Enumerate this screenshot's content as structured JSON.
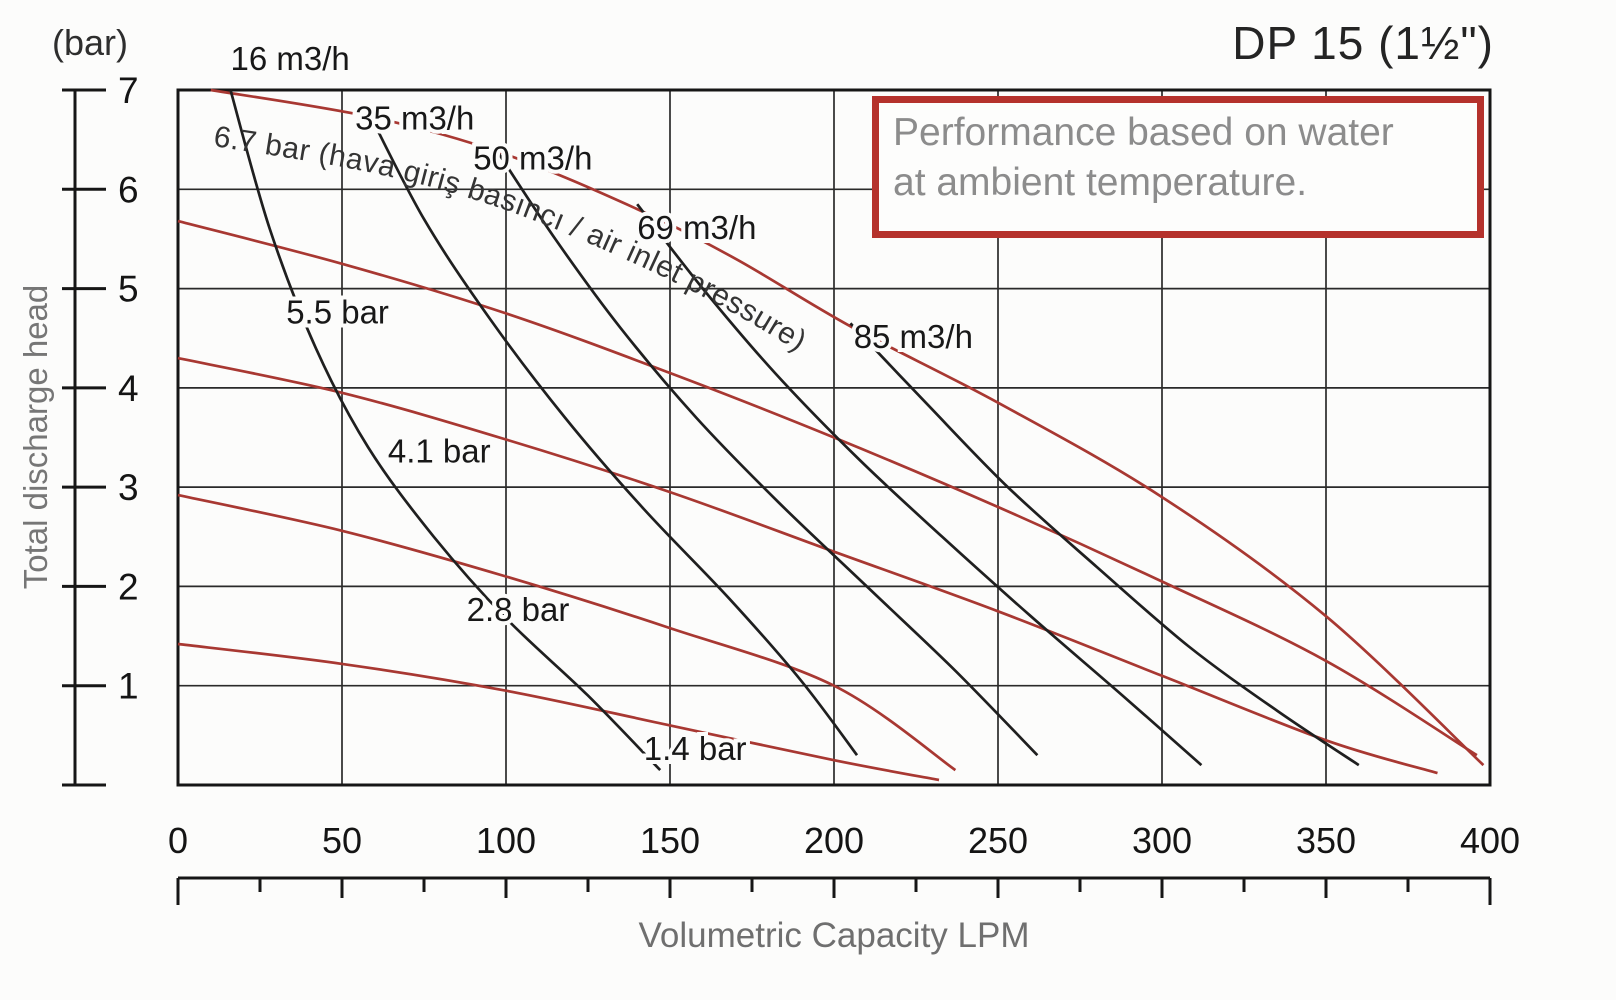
{
  "page": {
    "unit_label": "(bar)",
    "title": "DP 15 (1½\")",
    "note_line1": "Performance based on water",
    "note_line2": "at ambient temperature.",
    "y_axis_title": "Total discharge head",
    "x_axis_title": "Volumetric Capacity LPM"
  },
  "colors": {
    "pressure_curve": "#a83832",
    "consumption_curve": "#1f1f1f",
    "note_border": "#b5322c",
    "note_text": "#8c8c8c"
  },
  "chart_data": {
    "type": "line",
    "title": "DP 15 (1½\")",
    "xlabel": "Volumetric Capacity LPM",
    "ylabel": "Total discharge head (bar)",
    "xlim": [
      0,
      400
    ],
    "ylim": [
      0,
      7
    ],
    "x_ticks": [
      0,
      50,
      100,
      150,
      200,
      250,
      300,
      350,
      400
    ],
    "y_ticks": [
      1,
      2,
      3,
      4,
      5,
      6,
      7
    ],
    "grid": true,
    "legend": "labels on curves",
    "series": [
      {
        "name": "6.7 bar",
        "type": "air-inlet-pressure",
        "label": "6.7 bar (hava giriş basıncı / air inlet pressure)",
        "label_on_curve": true,
        "points": [
          [
            10,
            7.0
          ],
          [
            60,
            6.72
          ],
          [
            100,
            6.35
          ],
          [
            140,
            5.8
          ],
          [
            170,
            5.3
          ],
          [
            205,
            4.62
          ],
          [
            250,
            3.85
          ],
          [
            300,
            2.9
          ],
          [
            350,
            1.7
          ],
          [
            398,
            0.2
          ]
        ]
      },
      {
        "name": "5.5 bar",
        "type": "air-inlet-pressure",
        "label": "5.5 bar",
        "label_at": [
          33,
          4.65
        ],
        "points": [
          [
            0,
            5.68
          ],
          [
            50,
            5.25
          ],
          [
            100,
            4.75
          ],
          [
            150,
            4.15
          ],
          [
            200,
            3.5
          ],
          [
            250,
            2.8
          ],
          [
            300,
            2.05
          ],
          [
            350,
            1.25
          ],
          [
            396,
            0.3
          ]
        ]
      },
      {
        "name": "4.1 bar",
        "type": "air-inlet-pressure",
        "label": "4.1 bar",
        "label_at": [
          64,
          3.25
        ],
        "points": [
          [
            0,
            4.3
          ],
          [
            50,
            3.95
          ],
          [
            100,
            3.48
          ],
          [
            150,
            2.95
          ],
          [
            200,
            2.35
          ],
          [
            250,
            1.75
          ],
          [
            300,
            1.1
          ],
          [
            350,
            0.45
          ],
          [
            384,
            0.12
          ]
        ]
      },
      {
        "name": "2.8 bar",
        "type": "air-inlet-pressure",
        "label": "2.8 bar",
        "label_at": [
          88,
          1.65
        ],
        "points": [
          [
            0,
            2.92
          ],
          [
            50,
            2.56
          ],
          [
            100,
            2.1
          ],
          [
            150,
            1.58
          ],
          [
            200,
            1.0
          ],
          [
            237,
            0.15
          ]
        ]
      },
      {
        "name": "1.4 bar",
        "type": "air-inlet-pressure",
        "label": "1.4 bar",
        "label_at": [
          142,
          0.25
        ],
        "points": [
          [
            0,
            1.42
          ],
          [
            50,
            1.22
          ],
          [
            100,
            0.95
          ],
          [
            150,
            0.6
          ],
          [
            200,
            0.25
          ],
          [
            232,
            0.05
          ]
        ]
      },
      {
        "name": "16 m3/h",
        "type": "air-consumption",
        "label": "16 m3/h",
        "label_at": [
          16,
          7.2
        ],
        "points": [
          [
            16,
            7.0
          ],
          [
            28,
            5.6
          ],
          [
            42,
            4.4
          ],
          [
            58,
            3.4
          ],
          [
            78,
            2.5
          ],
          [
            100,
            1.68
          ],
          [
            125,
            0.9
          ],
          [
            147,
            0.15
          ]
        ]
      },
      {
        "name": "35 m3/h",
        "type": "air-consumption",
        "label": "35 m3/h",
        "label_at": [
          54,
          6.6
        ],
        "points": [
          [
            57,
            6.85
          ],
          [
            75,
            5.7
          ],
          [
            95,
            4.7
          ],
          [
            118,
            3.7
          ],
          [
            142,
            2.78
          ],
          [
            168,
            1.88
          ],
          [
            190,
            1.05
          ],
          [
            207,
            0.3
          ]
        ]
      },
      {
        "name": "50 m3/h",
        "type": "air-consumption",
        "label": "50 m3/h",
        "label_at": [
          90,
          6.2
        ],
        "points": [
          [
            97,
            6.4
          ],
          [
            115,
            5.5
          ],
          [
            135,
            4.6
          ],
          [
            158,
            3.7
          ],
          [
            183,
            2.85
          ],
          [
            210,
            2.0
          ],
          [
            237,
            1.15
          ],
          [
            262,
            0.3
          ]
        ]
      },
      {
        "name": "69 m3/h",
        "type": "air-consumption",
        "label": "69 m3/h",
        "label_at": [
          140,
          5.5
        ],
        "points": [
          [
            140,
            5.85
          ],
          [
            160,
            5.0
          ],
          [
            182,
            4.15
          ],
          [
            207,
            3.3
          ],
          [
            233,
            2.5
          ],
          [
            260,
            1.7
          ],
          [
            288,
            0.9
          ],
          [
            312,
            0.2
          ]
        ]
      },
      {
        "name": "85 m3/h",
        "type": "air-consumption",
        "label": "85 m3/h",
        "label_at": [
          206,
          4.4
        ],
        "points": [
          [
            205,
            4.65
          ],
          [
            228,
            3.85
          ],
          [
            253,
            3.0
          ],
          [
            280,
            2.2
          ],
          [
            308,
            1.4
          ],
          [
            335,
            0.75
          ],
          [
            360,
            0.2
          ]
        ]
      }
    ]
  }
}
